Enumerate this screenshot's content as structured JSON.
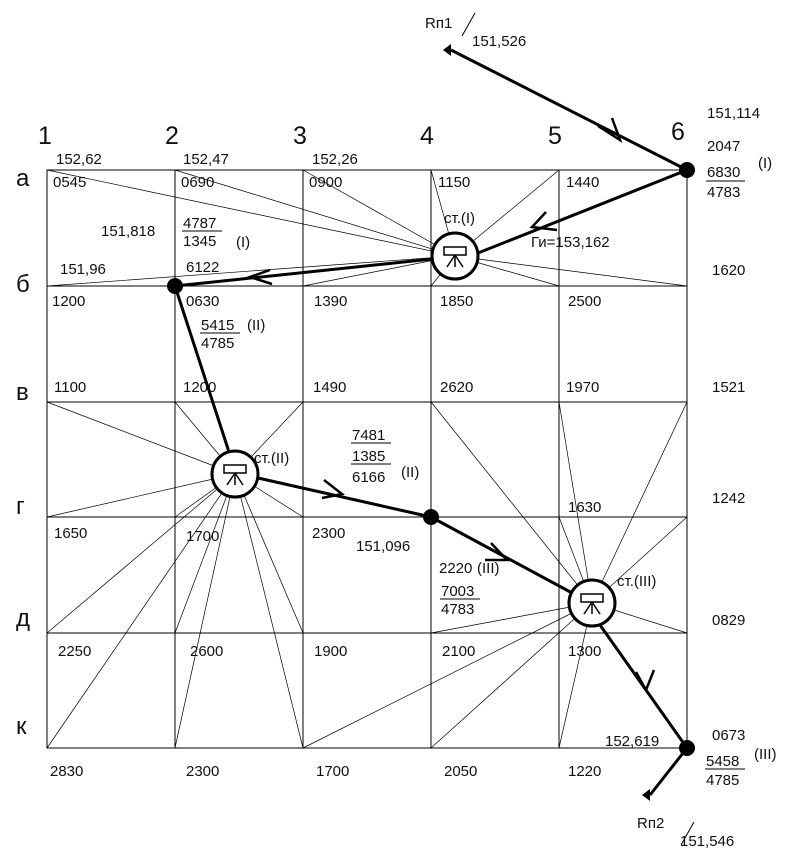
{
  "columns": [
    "1",
    "2",
    "3",
    "4",
    "5",
    "6"
  ],
  "rows": [
    "а",
    "б",
    "в",
    "г",
    "д",
    "к"
  ],
  "benchmarks": {
    "rp1": {
      "name": "Rп1",
      "elev": "151,526"
    },
    "rp2": {
      "name": "Rп2",
      "elev": "151,546"
    }
  },
  "grid_values": {
    "a1": "0545",
    "a2": "0690",
    "a3": "0900",
    "a4": "1150",
    "a5": "1440",
    "b1": "1200",
    "b2": "0630",
    "b3": "1390",
    "b4": "1850",
    "b5": "2500",
    "b6": "1620",
    "v1": "1100",
    "v2": "1200",
    "v3": "1490",
    "v4": "2620",
    "v5": "1970",
    "v6": "1521",
    "g1": "1650",
    "g2": "1700",
    "g3": "2300",
    "g5": "1630",
    "g6": "1242",
    "d6": "0829",
    "k1": "2250",
    "k2": "2600",
    "k3": "1900",
    "k4": "2100",
    "k5": "1300",
    "k6": "0673",
    "bot1": "2830",
    "bot2": "2300",
    "bot3": "1700",
    "bot4": "2050",
    "bot5": "1220"
  },
  "elevations": {
    "a1": "152,62",
    "a2": "152,47",
    "a3": "152,26",
    "corner6": "151,114",
    "b1": "151,96",
    "b_left": "151,818",
    "turn_g4": "151,096",
    "k6": "152,619",
    "gi": "Ги=153,162"
  },
  "station_labels": {
    "st1": "ст.(I)",
    "st2": "ст.(II)",
    "st3": "ст.(III)"
  },
  "readings": {
    "s6_top": "2047",
    "s6_num": "6830",
    "s6_den": "4783",
    "s6_tag": "(I)",
    "b2_num": "4787",
    "b2_den": "1345",
    "b2_tag": "(I)",
    "b2_extra": "6122",
    "b2_num2": "5415",
    "b2_tag2": "(II)",
    "b2_den2": "4785",
    "g4_a": "7481",
    "g4_b": "1385",
    "g4_c": "6166",
    "g4_tag": "(II)",
    "g4_d": "2220",
    "g4_tag2": "(III)",
    "g4_num": "7003",
    "g4_den": "4783",
    "k6_num": "5458",
    "k6_den": "4785",
    "k6_tag": "(III)"
  }
}
